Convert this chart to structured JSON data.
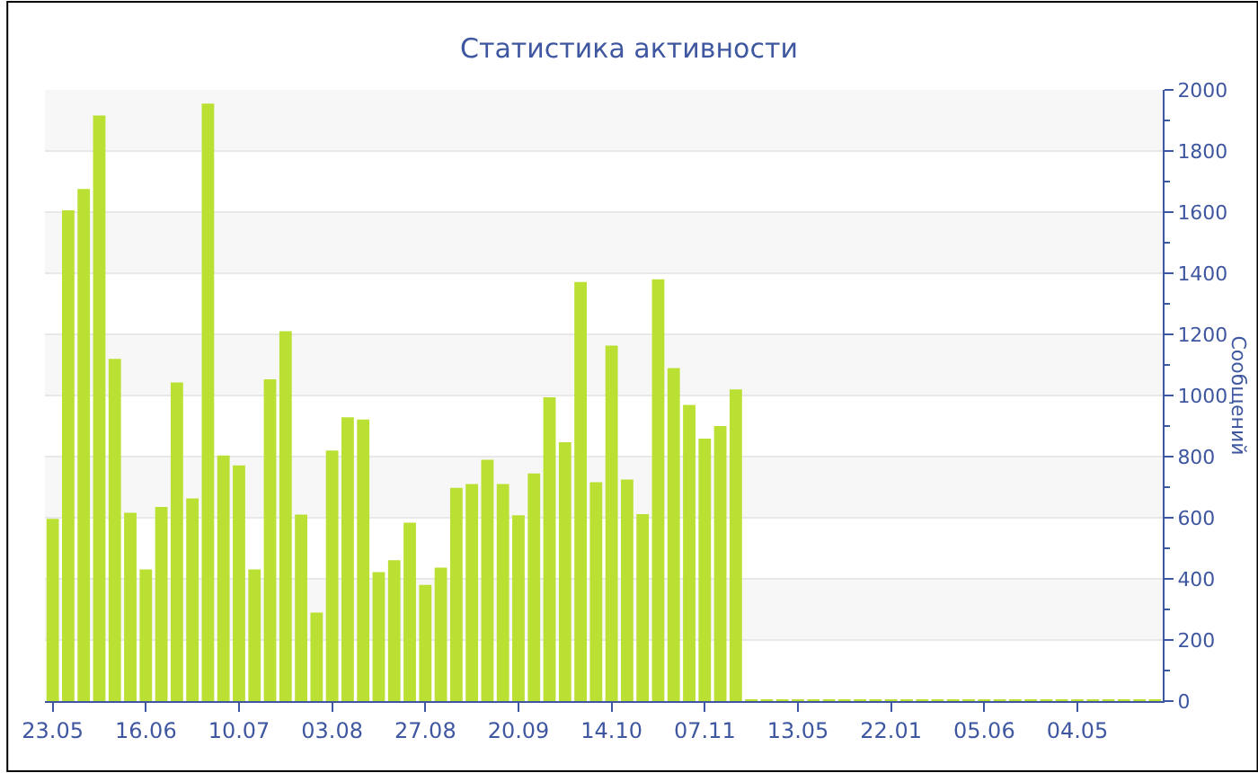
{
  "chart_data": {
    "type": "bar",
    "title": "Статистика активности",
    "ylabel": "Сообщений",
    "categories": [
      "23.05",
      null,
      null,
      null,
      null,
      null,
      "16.06",
      null,
      null,
      null,
      null,
      null,
      "10.07",
      null,
      null,
      null,
      null,
      null,
      "03.08",
      null,
      null,
      null,
      null,
      null,
      "27.08",
      null,
      null,
      null,
      null,
      null,
      "20.09",
      null,
      null,
      null,
      null,
      null,
      "14.10",
      null,
      null,
      null,
      null,
      null,
      "07.11",
      null,
      null,
      null,
      null,
      null,
      "13.05",
      null,
      null,
      null,
      null,
      null,
      "22.01",
      null,
      null,
      null,
      null,
      null,
      "05.06",
      null,
      null,
      null,
      null,
      null,
      "04.05",
      null,
      null,
      null,
      null,
      null
    ],
    "values": [
      596,
      1606,
      1676,
      1916,
      1120,
      616,
      431,
      635,
      1043,
      663,
      1955,
      804,
      771,
      431,
      1053,
      1210,
      610,
      290,
      820,
      929,
      921,
      422,
      461,
      584,
      380,
      437,
      698,
      710,
      790,
      710,
      608,
      745,
      994,
      847,
      1371,
      716,
      1163,
      725,
      612,
      1380,
      1090,
      969,
      859,
      900,
      1020,
      5,
      5,
      5,
      5,
      5,
      5,
      5,
      5,
      5,
      5,
      5,
      5,
      5,
      5,
      5,
      5,
      5,
      5,
      5,
      5,
      5,
      5,
      5,
      5,
      5,
      5,
      5
    ],
    "color": "#bbe034",
    "ylim": [
      0,
      2000
    ],
    "yticks": [
      0,
      200,
      400,
      600,
      800,
      1000,
      1200,
      1400,
      1600,
      1800,
      2000
    ],
    "grid": "y",
    "legend": false
  }
}
